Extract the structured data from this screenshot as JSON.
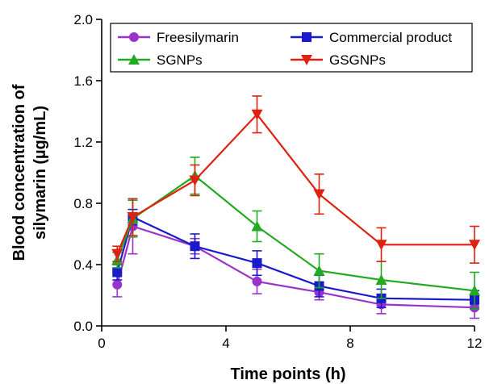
{
  "chart_data": {
    "type": "line",
    "title": "",
    "xlabel": "Time points (h)",
    "ylabel_lines": [
      "Blood concentration of",
      "silymarin (µg/mL)"
    ],
    "xlim": [
      0,
      12
    ],
    "ylim": [
      0,
      2.0
    ],
    "x_ticks": [
      "0",
      "4",
      "8",
      "12"
    ],
    "y_ticks": [
      "0.0",
      "0.4",
      "0.8",
      "1.2",
      "1.6",
      "2.0"
    ],
    "grid": false,
    "legend_position": "top",
    "x": [
      0.5,
      1,
      3,
      5,
      7,
      9,
      12
    ],
    "series": [
      {
        "name": "Freesilymarin",
        "color": "#9933cc",
        "marker": "circle",
        "values": [
          0.27,
          0.65,
          0.52,
          0.29,
          0.22,
          0.14,
          0.12
        ],
        "errors": [
          0.08,
          0.18,
          0.05,
          0.08,
          0.05,
          0.06,
          0.07
        ]
      },
      {
        "name": "Commercial product",
        "color": "#1a1acc",
        "marker": "square",
        "values": [
          0.35,
          0.71,
          0.52,
          0.41,
          0.26,
          0.18,
          0.17
        ],
        "errors": [
          0.05,
          0.05,
          0.08,
          0.08,
          0.07,
          0.06,
          0.06
        ]
      },
      {
        "name": "SGNPs",
        "color": "#22aa22",
        "marker": "triangle-up",
        "values": [
          0.43,
          0.7,
          0.98,
          0.65,
          0.36,
          0.3,
          0.23
        ],
        "errors": [
          0.05,
          0.12,
          0.12,
          0.1,
          0.11,
          0.12,
          0.12
        ]
      },
      {
        "name": "GSGNPs",
        "color": "#dd2211",
        "marker": "triangle-down",
        "values": [
          0.47,
          0.71,
          0.95,
          1.38,
          0.86,
          0.53,
          0.53
        ],
        "errors": [
          0.05,
          0.12,
          0.1,
          0.12,
          0.13,
          0.11,
          0.12
        ]
      }
    ]
  }
}
